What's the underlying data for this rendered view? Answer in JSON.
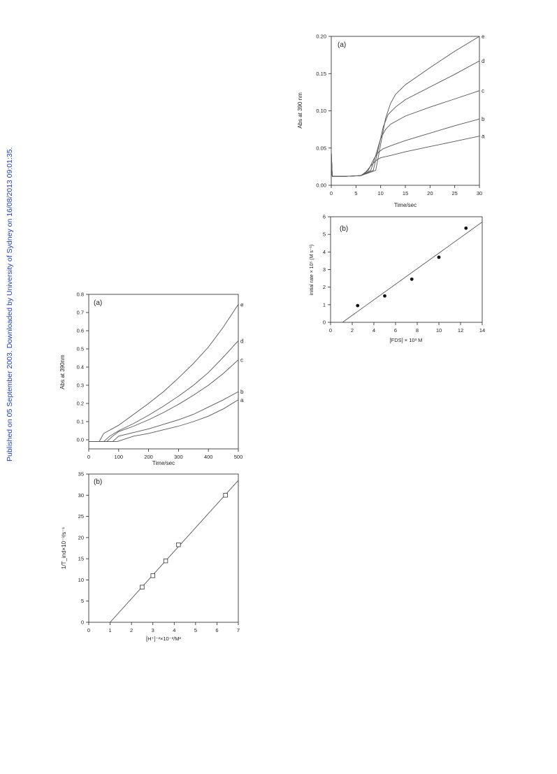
{
  "watermark": "Published on 05 September 2003. Downloaded by University of Sydney on 16/08/2013 09:01:35.",
  "colors": {
    "line": "#555555",
    "axis": "#222222",
    "text": "#222222",
    "link": "#1f3fbf"
  },
  "chart_data": [
    {
      "type": "line",
      "panel": "(a)",
      "ylabel": "Abs at 390 nm",
      "xlabel": "Time/sec",
      "xlim": [
        0,
        30
      ],
      "ylim": [
        0,
        0.2
      ],
      "xticks": [
        "0",
        "5",
        "10",
        "15",
        "20",
        "25",
        "30"
      ],
      "yticks": [
        "0.00",
        "0.05",
        "0.10",
        "0.15",
        "0.20"
      ],
      "series": [
        {
          "name": "a",
          "x": [
            0,
            0.2,
            3,
            6,
            7,
            8,
            9,
            10,
            12,
            15,
            20,
            25,
            30
          ],
          "y": [
            0.045,
            0.012,
            0.012,
            0.013,
            0.018,
            0.026,
            0.033,
            0.037,
            0.04,
            0.045,
            0.052,
            0.059,
            0.066
          ]
        },
        {
          "name": "b",
          "x": [
            0,
            0.2,
            3,
            6,
            7.5,
            8.5,
            9.5,
            10.5,
            12,
            15,
            20,
            25,
            30
          ],
          "y": [
            0.045,
            0.012,
            0.012,
            0.013,
            0.02,
            0.034,
            0.044,
            0.049,
            0.053,
            0.06,
            0.07,
            0.08,
            0.089
          ]
        },
        {
          "name": "c",
          "x": [
            0,
            0.2,
            3,
            6,
            8,
            9,
            10,
            11,
            12,
            15,
            20,
            25,
            30
          ],
          "y": [
            0.045,
            0.012,
            0.012,
            0.013,
            0.02,
            0.04,
            0.063,
            0.075,
            0.082,
            0.093,
            0.105,
            0.116,
            0.127
          ]
        },
        {
          "name": "d",
          "x": [
            0,
            0.2,
            3,
            6,
            8.5,
            9.5,
            10.5,
            11.5,
            13,
            15,
            20,
            25,
            30
          ],
          "y": [
            0.045,
            0.012,
            0.012,
            0.013,
            0.02,
            0.048,
            0.078,
            0.095,
            0.105,
            0.115,
            0.132,
            0.149,
            0.167
          ]
        },
        {
          "name": "e",
          "x": [
            0,
            0.2,
            3,
            6,
            9,
            10,
            11,
            12,
            13,
            15,
            20,
            25,
            30
          ],
          "y": [
            0.045,
            0.012,
            0.012,
            0.013,
            0.02,
            0.055,
            0.09,
            0.11,
            0.122,
            0.135,
            0.158,
            0.18,
            0.2
          ]
        }
      ]
    },
    {
      "type": "scatter",
      "panel": "(b)",
      "ylabel": "initial rate × 10⁵ (M s⁻¹)",
      "xlabel": "[FDS] × 10³ M",
      "xlim": [
        0,
        14
      ],
      "ylim": [
        0,
        6
      ],
      "xticks": [
        "0",
        "2",
        "4",
        "6",
        "8",
        "10",
        "12",
        "14"
      ],
      "yticks": [
        "0",
        "1",
        "2",
        "3",
        "4",
        "5",
        "6"
      ],
      "points": [
        {
          "x": 2.5,
          "y": 0.95
        },
        {
          "x": 5.0,
          "y": 1.5
        },
        {
          "x": 7.5,
          "y": 2.45
        },
        {
          "x": 10.0,
          "y": 3.7
        },
        {
          "x": 12.5,
          "y": 5.35
        }
      ],
      "fit_line": [
        {
          "x": 1.1,
          "y": 0
        },
        {
          "x": 14,
          "y": 5.7
        }
      ]
    },
    {
      "type": "line",
      "panel": "(a)",
      "ylabel": "Abs at 390nm",
      "xlabel": "Time/sec",
      "xlim": [
        0,
        500
      ],
      "ylim": [
        -0.05,
        0.8
      ],
      "xticks": [
        "0",
        "100",
        "200",
        "300",
        "400",
        "500"
      ],
      "yticks": [
        "0.0",
        "0.1",
        "0.2",
        "0.3",
        "0.4",
        "0.5",
        "0.6",
        "0.7",
        "0.8"
      ],
      "series": [
        {
          "name": "a",
          "x": [
            0,
            95,
            150,
            200,
            250,
            300,
            350,
            400,
            450,
            500
          ],
          "y": [
            -0.01,
            -0.01,
            0.02,
            0.035,
            0.055,
            0.075,
            0.1,
            0.13,
            0.17,
            0.22
          ]
        },
        {
          "name": "b",
          "x": [
            0,
            80,
            100,
            150,
            200,
            250,
            300,
            350,
            400,
            450,
            500
          ],
          "y": [
            -0.01,
            -0.01,
            0.02,
            0.04,
            0.06,
            0.085,
            0.11,
            0.14,
            0.18,
            0.22,
            0.265
          ]
        },
        {
          "name": "c",
          "x": [
            0,
            60,
            80,
            100,
            150,
            200,
            250,
            300,
            350,
            400,
            450,
            500
          ],
          "y": [
            -0.01,
            -0.01,
            0.02,
            0.045,
            0.075,
            0.11,
            0.15,
            0.195,
            0.245,
            0.3,
            0.365,
            0.44
          ]
        },
        {
          "name": "d",
          "x": [
            0,
            50,
            70,
            100,
            150,
            200,
            250,
            300,
            350,
            400,
            450,
            500
          ],
          "y": [
            -0.01,
            -0.01,
            0.02,
            0.05,
            0.09,
            0.135,
            0.185,
            0.24,
            0.3,
            0.37,
            0.455,
            0.545
          ]
        },
        {
          "name": "e",
          "x": [
            0,
            35,
            50,
            100,
            150,
            200,
            250,
            300,
            350,
            400,
            450,
            500
          ],
          "y": [
            -0.01,
            -0.01,
            0.035,
            0.08,
            0.14,
            0.2,
            0.265,
            0.34,
            0.42,
            0.51,
            0.62,
            0.745
          ]
        }
      ]
    },
    {
      "type": "scatter",
      "panel": "(b)",
      "ylabel": "1/T_ind×10⁻³/s⁻¹",
      "xlabel": "[H⁺]⁻²×10⁻³/M²",
      "xlim": [
        0,
        7
      ],
      "ylim": [
        0,
        35
      ],
      "xticks": [
        "0",
        "1",
        "2",
        "3",
        "4",
        "5",
        "6",
        "7"
      ],
      "yticks": [
        "0",
        "5",
        "10",
        "15",
        "20",
        "25",
        "30",
        "35"
      ],
      "points": [
        {
          "x": 2.5,
          "y": 8.3
        },
        {
          "x": 3.0,
          "y": 11.0
        },
        {
          "x": 3.6,
          "y": 14.5
        },
        {
          "x": 4.2,
          "y": 18.3
        },
        {
          "x": 6.4,
          "y": 30.0
        }
      ],
      "fit_line": [
        {
          "x": 1.0,
          "y": 0
        },
        {
          "x": 7.0,
          "y": 33.5
        }
      ]
    }
  ]
}
